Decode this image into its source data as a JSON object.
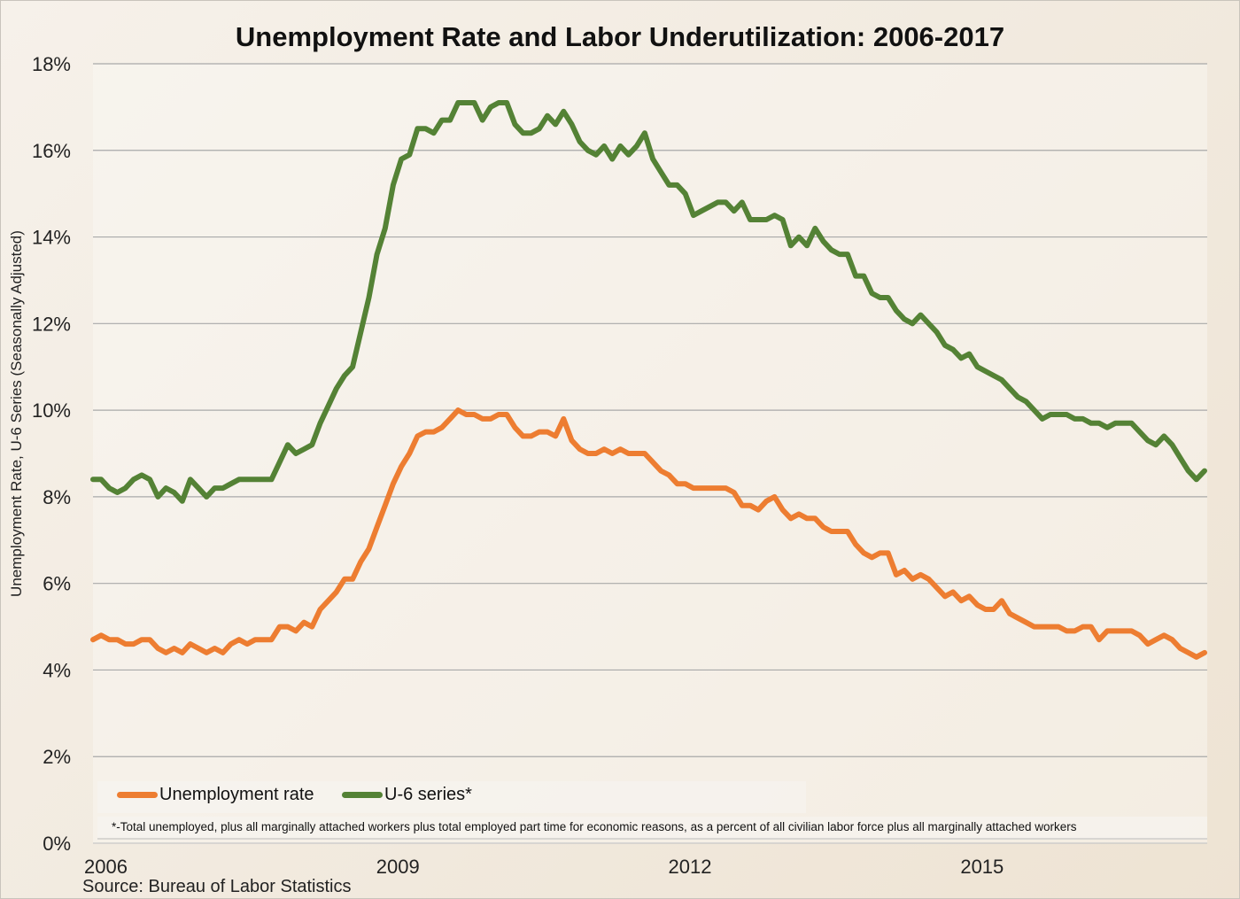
{
  "chart_data": {
    "type": "line",
    "title": "Unemployment Rate and Labor Underutilization:  2006-2017",
    "ylabel": "Unemployment Rate, U-6 Series (Seasonally Adjusted)",
    "xlabel": "",
    "ylim": [
      0,
      18
    ],
    "yticks": [
      "0%",
      "2%",
      "4%",
      "6%",
      "8%",
      "10%",
      "12%",
      "14%",
      "16%",
      "18%"
    ],
    "ytick_values": [
      0,
      2,
      4,
      6,
      8,
      10,
      12,
      14,
      16,
      18
    ],
    "xticks": [
      {
        "label": "2006",
        "month_index": 0
      },
      {
        "label": "2009",
        "month_index": 36
      },
      {
        "label": "2012",
        "month_index": 72
      },
      {
        "label": "2015",
        "month_index": 108
      }
    ],
    "x_start": "2006-01",
    "x_frequency": "monthly",
    "grid": true,
    "legend_position": "bottom-left",
    "series": [
      {
        "name": "Unemployment rate",
        "color": "#ed7d31",
        "values": [
          4.7,
          4.8,
          4.7,
          4.7,
          4.6,
          4.6,
          4.7,
          4.7,
          4.5,
          4.4,
          4.5,
          4.4,
          4.6,
          4.5,
          4.4,
          4.5,
          4.4,
          4.6,
          4.7,
          4.6,
          4.7,
          4.7,
          4.7,
          5.0,
          5.0,
          4.9,
          5.1,
          5.0,
          5.4,
          5.6,
          5.8,
          6.1,
          6.1,
          6.5,
          6.8,
          7.3,
          7.8,
          8.3,
          8.7,
          9.0,
          9.4,
          9.5,
          9.5,
          9.6,
          9.8,
          10.0,
          9.9,
          9.9,
          9.8,
          9.8,
          9.9,
          9.9,
          9.6,
          9.4,
          9.4,
          9.5,
          9.5,
          9.4,
          9.8,
          9.3,
          9.1,
          9.0,
          9.0,
          9.1,
          9.0,
          9.1,
          9.0,
          9.0,
          9.0,
          8.8,
          8.6,
          8.5,
          8.3,
          8.3,
          8.2,
          8.2,
          8.2,
          8.2,
          8.2,
          8.1,
          7.8,
          7.8,
          7.7,
          7.9,
          8.0,
          7.7,
          7.5,
          7.6,
          7.5,
          7.5,
          7.3,
          7.2,
          7.2,
          7.2,
          6.9,
          6.7,
          6.6,
          6.7,
          6.7,
          6.2,
          6.3,
          6.1,
          6.2,
          6.1,
          5.9,
          5.7,
          5.8,
          5.6,
          5.7,
          5.5,
          5.4,
          5.4,
          5.6,
          5.3,
          5.2,
          5.1,
          5.0,
          5.0,
          5.0,
          5.0,
          4.9,
          4.9,
          5.0,
          5.0,
          4.7,
          4.9,
          4.9,
          4.9,
          4.9,
          4.8,
          4.6,
          4.7,
          4.8,
          4.7,
          4.5,
          4.4,
          4.3,
          4.4
        ]
      },
      {
        "name": "U-6 series*",
        "color": "#548235",
        "values": [
          8.4,
          8.4,
          8.2,
          8.1,
          8.2,
          8.4,
          8.5,
          8.4,
          8.0,
          8.2,
          8.1,
          7.9,
          8.4,
          8.2,
          8.0,
          8.2,
          8.2,
          8.3,
          8.4,
          8.4,
          8.4,
          8.4,
          8.4,
          8.8,
          9.2,
          9.0,
          9.1,
          9.2,
          9.7,
          10.1,
          10.5,
          10.8,
          11.0,
          11.8,
          12.6,
          13.6,
          14.2,
          15.2,
          15.8,
          15.9,
          16.5,
          16.5,
          16.4,
          16.7,
          16.7,
          17.1,
          17.1,
          17.1,
          16.7,
          17.0,
          17.1,
          17.1,
          16.6,
          16.4,
          16.4,
          16.5,
          16.8,
          16.6,
          16.9,
          16.6,
          16.2,
          16.0,
          15.9,
          16.1,
          15.8,
          16.1,
          15.9,
          16.1,
          16.4,
          15.8,
          15.5,
          15.2,
          15.2,
          15.0,
          14.5,
          14.6,
          14.7,
          14.8,
          14.8,
          14.6,
          14.8,
          14.4,
          14.4,
          14.4,
          14.5,
          14.4,
          13.8,
          14.0,
          13.8,
          14.2,
          13.9,
          13.7,
          13.6,
          13.6,
          13.1,
          13.1,
          12.7,
          12.6,
          12.6,
          12.3,
          12.1,
          12.0,
          12.2,
          12.0,
          11.8,
          11.5,
          11.4,
          11.2,
          11.3,
          11.0,
          10.9,
          10.8,
          10.7,
          10.5,
          10.3,
          10.2,
          10.0,
          9.8,
          9.9,
          9.9,
          9.9,
          9.8,
          9.8,
          9.7,
          9.7,
          9.6,
          9.7,
          9.7,
          9.7,
          9.5,
          9.3,
          9.2,
          9.4,
          9.2,
          8.9,
          8.6,
          8.4,
          8.6
        ]
      }
    ],
    "legend": [
      "Unemployment rate",
      "U-6 series*"
    ],
    "footnote": "*-Total unemployed,  plus all marginally attached workers plus total employed part time for economic  reasons, as a percent of all civilian labor force plus all marginally attached workers",
    "source": "Source: Bureau of Labor Statistics"
  }
}
